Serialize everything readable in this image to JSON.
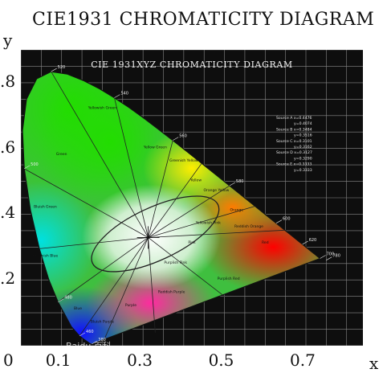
{
  "chart_data": {
    "type": "diagram",
    "title": "CIE1931 CHROMATICITY DIAGRAM",
    "inner_title": "CIE 1931XYZ CHROMATICITY DIAGRAM",
    "xlabel": "x",
    "ylabel": "y",
    "x_ticks": [
      "0",
      "0.1",
      "0.3",
      "0.5",
      "0.7"
    ],
    "y_ticks": [
      ".8",
      ".6",
      ".4",
      ".2"
    ],
    "x_tick_values": [
      0,
      0.1,
      0.3,
      0.5,
      0.7
    ],
    "y_tick_values": [
      0.8,
      0.6,
      0.4,
      0.2
    ],
    "xlim": [
      0.0,
      0.84
    ],
    "ylim": [
      0.0,
      0.9
    ],
    "grid": true,
    "background": "#0e0e0e",
    "spectral_locus": [
      [
        0.1741,
        0.005
      ],
      [
        0.1738,
        0.005
      ],
      [
        0.1733,
        0.0048
      ],
      [
        0.1726,
        0.0048
      ],
      [
        0.1714,
        0.0051
      ],
      [
        0.1689,
        0.0069
      ],
      [
        0.1644,
        0.0109
      ],
      [
        0.1566,
        0.0177
      ],
      [
        0.144,
        0.0297
      ],
      [
        0.1241,
        0.0578
      ],
      [
        0.0913,
        0.1327
      ],
      [
        0.0687,
        0.2007
      ],
      [
        0.0454,
        0.295
      ],
      [
        0.0235,
        0.4127
      ],
      [
        0.0082,
        0.5384
      ],
      [
        0.0039,
        0.6548
      ],
      [
        0.0139,
        0.7502
      ],
      [
        0.0389,
        0.812
      ],
      [
        0.0743,
        0.8338
      ],
      [
        0.1142,
        0.8262
      ],
      [
        0.1547,
        0.8059
      ],
      [
        0.1929,
        0.7816
      ],
      [
        0.2296,
        0.7543
      ],
      [
        0.2658,
        0.7243
      ],
      [
        0.3016,
        0.6923
      ],
      [
        0.3373,
        0.6589
      ],
      [
        0.3731,
        0.6245
      ],
      [
        0.4087,
        0.5896
      ],
      [
        0.4441,
        0.5547
      ],
      [
        0.4788,
        0.5202
      ],
      [
        0.5125,
        0.4866
      ],
      [
        0.5448,
        0.4544
      ],
      [
        0.5752,
        0.4242
      ],
      [
        0.6029,
        0.3965
      ],
      [
        0.627,
        0.3725
      ],
      [
        0.6482,
        0.3514
      ],
      [
        0.6658,
        0.334
      ],
      [
        0.6801,
        0.3197
      ],
      [
        0.6915,
        0.3083
      ],
      [
        0.7006,
        0.2993
      ],
      [
        0.7079,
        0.292
      ],
      [
        0.714,
        0.2859
      ],
      [
        0.719,
        0.2809
      ],
      [
        0.723,
        0.277
      ],
      [
        0.726,
        0.274
      ],
      [
        0.7347,
        0.2653
      ]
    ],
    "white_point": [
      0.3127,
      0.329
    ],
    "wavelength_labels": [
      "380",
      "460",
      "480",
      "500",
      "520",
      "540",
      "560",
      "580",
      "600",
      "620",
      "700",
      "780"
    ],
    "wavelength_points": [
      [
        0.1741,
        0.005
      ],
      [
        0.144,
        0.0297
      ],
      [
        0.0913,
        0.1327
      ],
      [
        0.0082,
        0.5384
      ],
      [
        0.0743,
        0.8338
      ],
      [
        0.2296,
        0.7543
      ],
      [
        0.3731,
        0.6245
      ],
      [
        0.5125,
        0.4866
      ],
      [
        0.627,
        0.3725
      ],
      [
        0.6915,
        0.3083
      ],
      [
        0.7347,
        0.2653
      ],
      [
        0.75,
        0.26
      ]
    ],
    "region_labels": [
      "Green",
      "Yellowish Green",
      "Yellow Green",
      "Greenish Yellow",
      "Yellow",
      "Orange Yellow",
      "Orange",
      "Reddish Orange",
      "Red",
      "Purplish Red",
      "Pink",
      "Reddish Purple",
      "Purple",
      "Bluish Purple",
      "Blue",
      "Greenish Blue",
      "Bluish Green",
      "Purplish Pink",
      "Yellowish Pink"
    ],
    "region_points": [
      [
        0.1,
        0.58
      ],
      [
        0.2,
        0.72
      ],
      [
        0.33,
        0.6
      ],
      [
        0.4,
        0.56
      ],
      [
        0.43,
        0.5
      ],
      [
        0.48,
        0.47
      ],
      [
        0.53,
        0.41
      ],
      [
        0.56,
        0.36
      ],
      [
        0.6,
        0.31
      ],
      [
        0.51,
        0.2
      ],
      [
        0.42,
        0.31
      ],
      [
        0.37,
        0.16
      ],
      [
        0.27,
        0.12
      ],
      [
        0.2,
        0.07
      ],
      [
        0.14,
        0.11
      ],
      [
        0.06,
        0.27
      ],
      [
        0.06,
        0.42
      ],
      [
        0.38,
        0.25
      ],
      [
        0.46,
        0.37
      ]
    ],
    "region_lines": [
      [
        [
          0.3127,
          0.329
        ],
        [
          0.0743,
          0.8338
        ]
      ],
      [
        [
          0.3127,
          0.329
        ],
        [
          0.0082,
          0.5384
        ]
      ],
      [
        [
          0.3127,
          0.329
        ],
        [
          0.0454,
          0.295
        ]
      ],
      [
        [
          0.3127,
          0.329
        ],
        [
          0.0913,
          0.1327
        ]
      ],
      [
        [
          0.3127,
          0.329
        ],
        [
          0.144,
          0.0297
        ]
      ],
      [
        [
          0.3127,
          0.329
        ],
        [
          0.2296,
          0.7543
        ]
      ],
      [
        [
          0.3127,
          0.329
        ],
        [
          0.3731,
          0.6245
        ]
      ],
      [
        [
          0.3127,
          0.329
        ],
        [
          0.4441,
          0.5547
        ]
      ],
      [
        [
          0.3127,
          0.329
        ],
        [
          0.5125,
          0.4866
        ]
      ],
      [
        [
          0.3127,
          0.329
        ],
        [
          0.5752,
          0.4242
        ]
      ],
      [
        [
          0.3127,
          0.329
        ],
        [
          0.6482,
          0.3514
        ]
      ],
      [
        [
          0.3127,
          0.329
        ],
        [
          0.2,
          0.005
        ]
      ],
      [
        [
          0.3127,
          0.329
        ],
        [
          0.33,
          0.04
        ]
      ],
      [
        [
          0.3127,
          0.329
        ],
        [
          0.5,
          0.15
        ]
      ]
    ],
    "white_ellipse": {
      "cx": 0.33,
      "cy": 0.34,
      "rx": 0.17,
      "ry": 0.08,
      "angle_deg": 25
    },
    "legend_placement": "right",
    "legend_lines": [
      "Source A x=0.4476",
      "y=0.4074",
      "Source B x=0.3484",
      "y=0.3516",
      "Source C x=0.3101",
      "y=0.3162",
      "Source D x=0.3127",
      "y=0.3290",
      "Source E x=0.3333",
      "y=0.3333"
    ]
  },
  "watermark": "Baidu 百科"
}
